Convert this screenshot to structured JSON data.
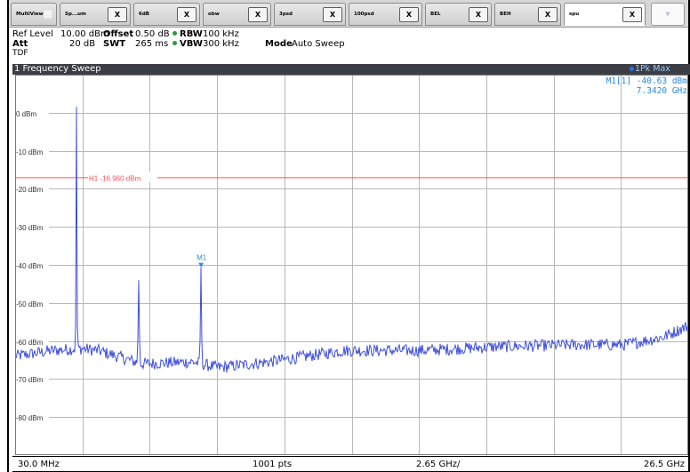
{
  "tabs": [
    {
      "label": "MultiView",
      "close": ""
    },
    {
      "label": "Sp...um",
      "close": "X"
    },
    {
      "label": "6dB",
      "close": "X"
    },
    {
      "label": "obw",
      "close": "X"
    },
    {
      "label": "3psd",
      "close": "X"
    },
    {
      "label": "100psd",
      "close": "X"
    },
    {
      "label": "BEL",
      "close": "X"
    },
    {
      "label": "BEH",
      "close": "X"
    },
    {
      "label": "spu",
      "close": "X"
    }
  ],
  "tab_more": "▿",
  "settings": {
    "ref_level_label": "Ref Level",
    "ref_level_value": "10.00 dBm",
    "att_label": "Att",
    "att_value": "20 dB",
    "offset_label": "Offset",
    "offset_value": "0.50 dB",
    "swt_label": "SWT",
    "swt_value": "265 ms",
    "rbw_label": "RBW",
    "rbw_value": "100 kHz",
    "vbw_label": "VBW",
    "vbw_value": "300 kHz",
    "mode_label": "Mode",
    "mode_value": "Auto Sweep",
    "tdf": "TDF"
  },
  "window": {
    "title": "1 Frequency Sweep",
    "trace": "1Pk Max"
  },
  "marker": {
    "name_line": "M1[1]  -40.63 dBm",
    "freq_line": "7.3420 GHz",
    "label": "M1"
  },
  "status": {
    "start": "30.0 MHz",
    "points": "1001 pts",
    "span_per_div": "2.65 GHz/",
    "stop": "26.5 GHz"
  },
  "chart_data": {
    "type": "line",
    "x_unit": "GHz",
    "y_unit": "dBm",
    "xlim": [
      0.03,
      26.5
    ],
    "ylim": [
      -90,
      10
    ],
    "y_ticks": [
      {
        "value": 0,
        "label": "0 dBm"
      },
      {
        "value": -10,
        "label": "-10 dBm"
      },
      {
        "value": -20,
        "label": "-20 dBm"
      },
      {
        "value": -30,
        "label": "-30 dBm"
      },
      {
        "value": -40,
        "label": "-40 dBm"
      },
      {
        "value": -50,
        "label": "-50 dBm"
      },
      {
        "value": -60,
        "label": "-60 dBm"
      },
      {
        "value": -70,
        "label": "-70 dBm"
      },
      {
        "value": -80,
        "label": "-80 dBm"
      }
    ],
    "x_divisions": 10,
    "grid": true,
    "limit_line": {
      "label": "H1  -16.960 dBm",
      "value": -16.96,
      "color": "#ff5050"
    },
    "trace_color": "#3f4fd8",
    "spikes": [
      {
        "x": 2.45,
        "y": 1.5
      },
      {
        "x": 4.9,
        "y": -44
      },
      {
        "x": 7.342,
        "y": -40.63
      }
    ],
    "noise_floor": [
      {
        "x": 0.03,
        "y": -64
      },
      {
        "x": 1.5,
        "y": -62.5
      },
      {
        "x": 2.6,
        "y": -62
      },
      {
        "x": 3.3,
        "y": -62.5
      },
      {
        "x": 5.0,
        "y": -66
      },
      {
        "x": 7.0,
        "y": -65.5
      },
      {
        "x": 8.0,
        "y": -67
      },
      {
        "x": 10.0,
        "y": -65.5
      },
      {
        "x": 13.0,
        "y": -62.5
      },
      {
        "x": 16.0,
        "y": -62.5
      },
      {
        "x": 19.0,
        "y": -61.5
      },
      {
        "x": 22.0,
        "y": -61
      },
      {
        "x": 24.0,
        "y": -61
      },
      {
        "x": 25.5,
        "y": -59
      },
      {
        "x": 26.5,
        "y": -56
      }
    ]
  }
}
